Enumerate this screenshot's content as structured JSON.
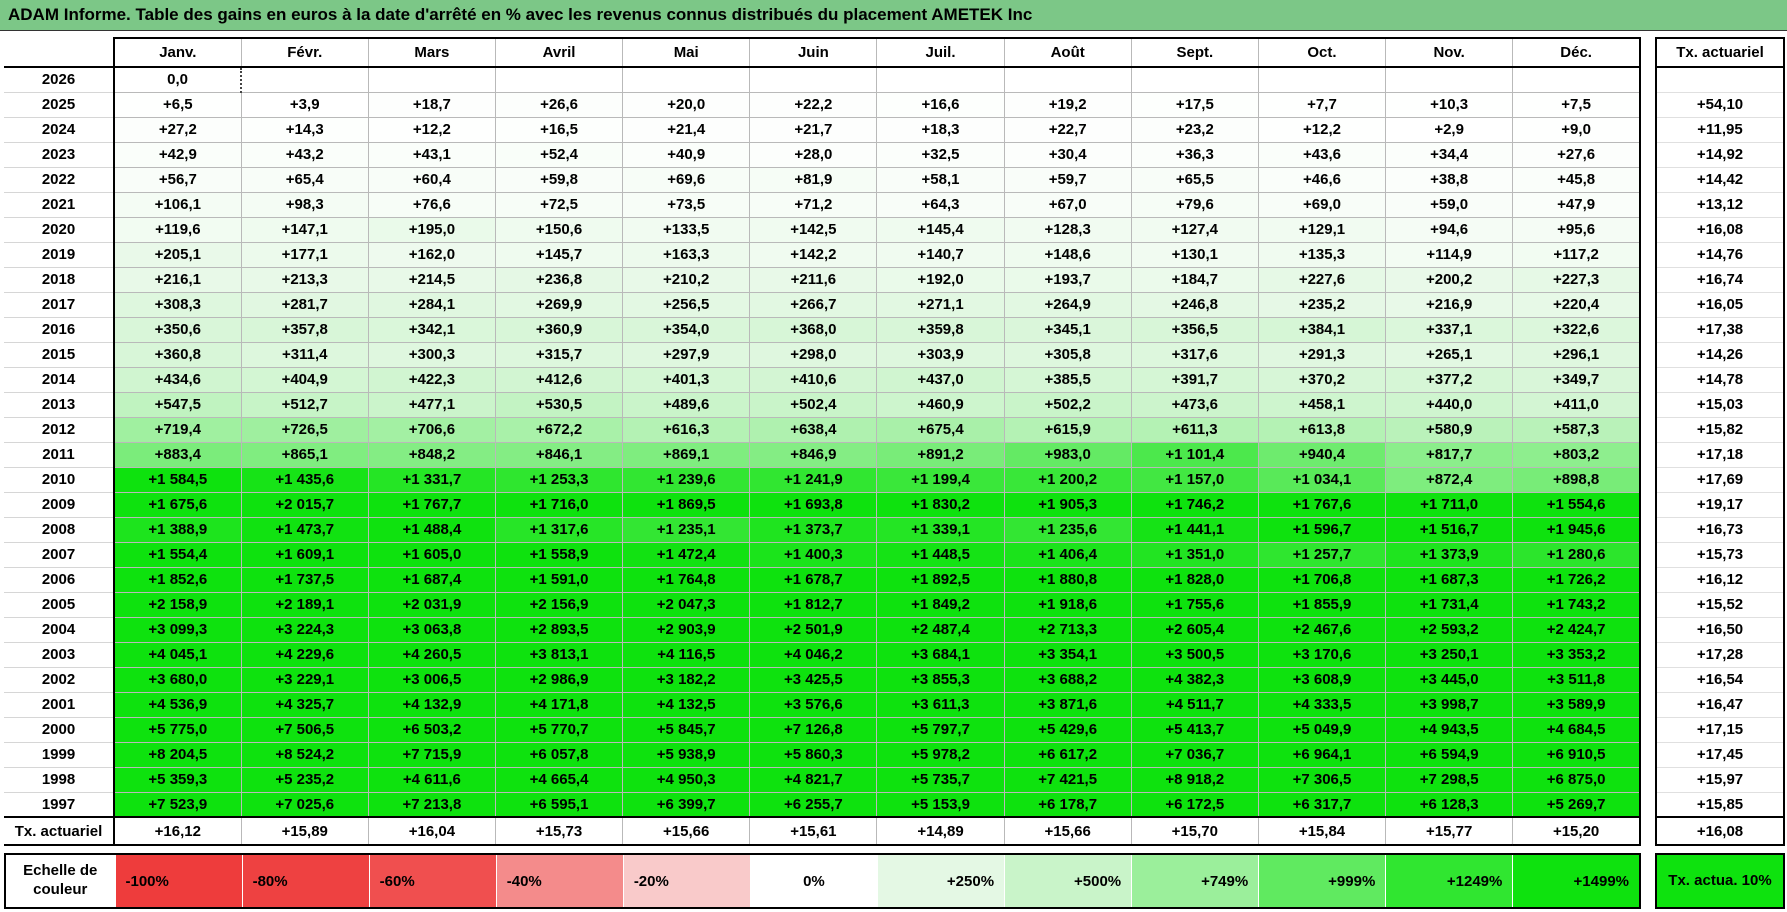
{
  "title": "ADAM Informe. Table des gains en euros à la date d'arrêté en % avec les revenus connus distribués du placement AMETEK Inc",
  "colors": {
    "title_bg": "#7cc787",
    "border_black": "#000000",
    "grid_gray": "#b9b9b9"
  },
  "color_scale": {
    "stops": [
      [
        0,
        "#ffffff"
      ],
      [
        250,
        "#e4f8e4"
      ],
      [
        500,
        "#c9f4c9"
      ],
      [
        749,
        "#9bef9b"
      ],
      [
        999,
        "#60ea60"
      ],
      [
        1249,
        "#30e630"
      ],
      [
        1499,
        "#0ee20e"
      ]
    ]
  },
  "table": {
    "month_headers": [
      "Janv.",
      "Févr.",
      "Mars",
      "Avril",
      "Mai",
      "Juin",
      "Juil.",
      "Août",
      "Sept.",
      "Oct.",
      "Nov.",
      "Déc."
    ],
    "tx_header": "Tx. actuariel",
    "rows": [
      {
        "year": "2026",
        "values": [
          "0,0",
          "",
          "",
          "",
          "",
          "",
          "",
          "",
          "",
          "",
          "",
          ""
        ],
        "tx": ""
      },
      {
        "year": "2025",
        "values": [
          "+6,5",
          "+3,9",
          "+18,7",
          "+26,6",
          "+20,0",
          "+22,2",
          "+16,6",
          "+19,2",
          "+17,5",
          "+7,7",
          "+10,3",
          "+7,5"
        ],
        "tx": "+54,10"
      },
      {
        "year": "2024",
        "values": [
          "+27,2",
          "+14,3",
          "+12,2",
          "+16,5",
          "+21,4",
          "+21,7",
          "+18,3",
          "+22,7",
          "+23,2",
          "+12,2",
          "+2,9",
          "+9,0"
        ],
        "tx": "+11,95"
      },
      {
        "year": "2023",
        "values": [
          "+42,9",
          "+43,2",
          "+43,1",
          "+52,4",
          "+40,9",
          "+28,0",
          "+32,5",
          "+30,4",
          "+36,3",
          "+43,6",
          "+34,4",
          "+27,6"
        ],
        "tx": "+14,92"
      },
      {
        "year": "2022",
        "values": [
          "+56,7",
          "+65,4",
          "+60,4",
          "+59,8",
          "+69,6",
          "+81,9",
          "+58,1",
          "+59,7",
          "+65,5",
          "+46,6",
          "+38,8",
          "+45,8"
        ],
        "tx": "+14,42"
      },
      {
        "year": "2021",
        "values": [
          "+106,1",
          "+98,3",
          "+76,6",
          "+72,5",
          "+73,5",
          "+71,2",
          "+64,3",
          "+67,0",
          "+79,6",
          "+69,0",
          "+59,0",
          "+47,9"
        ],
        "tx": "+13,12"
      },
      {
        "year": "2020",
        "values": [
          "+119,6",
          "+147,1",
          "+195,0",
          "+150,6",
          "+133,5",
          "+142,5",
          "+145,4",
          "+128,3",
          "+127,4",
          "+129,1",
          "+94,6",
          "+95,6"
        ],
        "tx": "+16,08"
      },
      {
        "year": "2019",
        "values": [
          "+205,1",
          "+177,1",
          "+162,0",
          "+145,7",
          "+163,3",
          "+142,2",
          "+140,7",
          "+148,6",
          "+130,1",
          "+135,3",
          "+114,9",
          "+117,2"
        ],
        "tx": "+14,76"
      },
      {
        "year": "2018",
        "values": [
          "+216,1",
          "+213,3",
          "+214,5",
          "+236,8",
          "+210,2",
          "+211,6",
          "+192,0",
          "+193,7",
          "+184,7",
          "+227,6",
          "+200,2",
          "+227,3"
        ],
        "tx": "+16,74"
      },
      {
        "year": "2017",
        "values": [
          "+308,3",
          "+281,7",
          "+284,1",
          "+269,9",
          "+256,5",
          "+266,7",
          "+271,1",
          "+264,9",
          "+246,8",
          "+235,2",
          "+216,9",
          "+220,4"
        ],
        "tx": "+16,05"
      },
      {
        "year": "2016",
        "values": [
          "+350,6",
          "+357,8",
          "+342,1",
          "+360,9",
          "+354,0",
          "+368,0",
          "+359,8",
          "+345,1",
          "+356,5",
          "+384,1",
          "+337,1",
          "+322,6"
        ],
        "tx": "+17,38"
      },
      {
        "year": "2015",
        "values": [
          "+360,8",
          "+311,4",
          "+300,3",
          "+315,7",
          "+297,9",
          "+298,0",
          "+303,9",
          "+305,8",
          "+317,6",
          "+291,3",
          "+265,1",
          "+296,1"
        ],
        "tx": "+14,26"
      },
      {
        "year": "2014",
        "values": [
          "+434,6",
          "+404,9",
          "+422,3",
          "+412,6",
          "+401,3",
          "+410,6",
          "+437,0",
          "+385,5",
          "+391,7",
          "+370,2",
          "+377,2",
          "+349,7"
        ],
        "tx": "+14,78"
      },
      {
        "year": "2013",
        "values": [
          "+547,5",
          "+512,7",
          "+477,1",
          "+530,5",
          "+489,6",
          "+502,4",
          "+460,9",
          "+502,2",
          "+473,6",
          "+458,1",
          "+440,0",
          "+411,0"
        ],
        "tx": "+15,03"
      },
      {
        "year": "2012",
        "values": [
          "+719,4",
          "+726,5",
          "+706,6",
          "+672,2",
          "+616,3",
          "+638,4",
          "+675,4",
          "+615,9",
          "+611,3",
          "+613,8",
          "+580,9",
          "+587,3"
        ],
        "tx": "+15,82"
      },
      {
        "year": "2011",
        "values": [
          "+883,4",
          "+865,1",
          "+848,2",
          "+846,1",
          "+869,1",
          "+846,9",
          "+891,2",
          "+983,0",
          "+1 101,4",
          "+940,4",
          "+817,7",
          "+803,2"
        ],
        "tx": "+17,18"
      },
      {
        "year": "2010",
        "values": [
          "+1 584,5",
          "+1 435,6",
          "+1 331,7",
          "+1 253,3",
          "+1 239,6",
          "+1 241,9",
          "+1 199,4",
          "+1 200,2",
          "+1 157,0",
          "+1 034,1",
          "+872,4",
          "+898,8"
        ],
        "tx": "+17,69"
      },
      {
        "year": "2009",
        "values": [
          "+1 675,6",
          "+2 015,7",
          "+1 767,7",
          "+1 716,0",
          "+1 869,5",
          "+1 693,8",
          "+1 830,2",
          "+1 905,3",
          "+1 746,2",
          "+1 767,6",
          "+1 711,0",
          "+1 554,6"
        ],
        "tx": "+19,17"
      },
      {
        "year": "2008",
        "values": [
          "+1 388,9",
          "+1 473,7",
          "+1 488,4",
          "+1 317,6",
          "+1 235,1",
          "+1 373,7",
          "+1 339,1",
          "+1 235,6",
          "+1 441,1",
          "+1 596,7",
          "+1 516,7",
          "+1 945,6"
        ],
        "tx": "+16,73"
      },
      {
        "year": "2007",
        "values": [
          "+1 554,4",
          "+1 609,1",
          "+1 605,0",
          "+1 558,9",
          "+1 472,4",
          "+1 400,3",
          "+1 448,5",
          "+1 406,4",
          "+1 351,0",
          "+1 257,7",
          "+1 373,9",
          "+1 280,6"
        ],
        "tx": "+15,73"
      },
      {
        "year": "2006",
        "values": [
          "+1 852,6",
          "+1 737,5",
          "+1 687,4",
          "+1 591,0",
          "+1 764,8",
          "+1 678,7",
          "+1 892,5",
          "+1 880,8",
          "+1 828,0",
          "+1 706,8",
          "+1 687,3",
          "+1 726,2"
        ],
        "tx": "+16,12"
      },
      {
        "year": "2005",
        "values": [
          "+2 158,9",
          "+2 189,1",
          "+2 031,9",
          "+2 156,9",
          "+2 047,3",
          "+1 812,7",
          "+1 849,2",
          "+1 918,6",
          "+1 755,6",
          "+1 855,9",
          "+1 731,4",
          "+1 743,2"
        ],
        "tx": "+15,52"
      },
      {
        "year": "2004",
        "values": [
          "+3 099,3",
          "+3 224,3",
          "+3 063,8",
          "+2 893,5",
          "+2 903,9",
          "+2 501,9",
          "+2 487,4",
          "+2 713,3",
          "+2 605,4",
          "+2 467,6",
          "+2 593,2",
          "+2 424,7"
        ],
        "tx": "+16,50"
      },
      {
        "year": "2003",
        "values": [
          "+4 045,1",
          "+4 229,6",
          "+4 260,5",
          "+3 813,1",
          "+4 116,5",
          "+4 046,2",
          "+3 684,1",
          "+3 354,1",
          "+3 500,5",
          "+3 170,6",
          "+3 250,1",
          "+3 353,2"
        ],
        "tx": "+17,28"
      },
      {
        "year": "2002",
        "values": [
          "+3 680,0",
          "+3 229,1",
          "+3 006,5",
          "+2 986,9",
          "+3 182,2",
          "+3 425,5",
          "+3 855,3",
          "+3 688,2",
          "+4 382,3",
          "+3 608,9",
          "+3 445,0",
          "+3 511,8"
        ],
        "tx": "+16,54"
      },
      {
        "year": "2001",
        "values": [
          "+4 536,9",
          "+4 325,7",
          "+4 132,9",
          "+4 171,8",
          "+4 132,5",
          "+3 576,6",
          "+3 611,3",
          "+3 871,6",
          "+4 511,7",
          "+4 333,5",
          "+3 998,7",
          "+3 589,9"
        ],
        "tx": "+16,47"
      },
      {
        "year": "2000",
        "values": [
          "+5 775,0",
          "+7 506,5",
          "+6 503,2",
          "+5 770,7",
          "+5 845,7",
          "+7 126,8",
          "+5 797,7",
          "+5 429,6",
          "+5 413,7",
          "+5 049,9",
          "+4 943,5",
          "+4 684,5"
        ],
        "tx": "+17,15"
      },
      {
        "year": "1999",
        "values": [
          "+8 204,5",
          "+8 524,2",
          "+7 715,9",
          "+6 057,8",
          "+5 938,9",
          "+5 860,3",
          "+5 978,2",
          "+6 617,2",
          "+7 036,7",
          "+6 964,1",
          "+6 594,9",
          "+6 910,5"
        ],
        "tx": "+17,45"
      },
      {
        "year": "1998",
        "values": [
          "+5 359,3",
          "+5 235,2",
          "+4 611,6",
          "+4 665,4",
          "+4 950,3",
          "+4 821,7",
          "+5 735,7",
          "+7 421,5",
          "+8 918,2",
          "+7 306,5",
          "+7 298,5",
          "+6 875,0"
        ],
        "tx": "+15,97"
      },
      {
        "year": "1997",
        "values": [
          "+7 523,9",
          "+7 025,6",
          "+7 213,8",
          "+6 595,1",
          "+6 399,7",
          "+6 255,7",
          "+5 153,9",
          "+6 178,7",
          "+6 172,5",
          "+6 317,7",
          "+6 128,3",
          "+5 269,7"
        ],
        "tx": "+15,85"
      }
    ],
    "footer": {
      "label": "Tx. actuariel",
      "values": [
        "+16,12",
        "+15,89",
        "+16,04",
        "+15,73",
        "+15,66",
        "+15,61",
        "+14,89",
        "+15,66",
        "+15,70",
        "+15,84",
        "+15,77",
        "+15,20"
      ],
      "tx": "+16,08"
    }
  },
  "legend": {
    "label": "Echelle de couleur",
    "cells": [
      {
        "label": "-100%",
        "color": "#ee3c3c",
        "align": "left"
      },
      {
        "label": "-80%",
        "color": "#ee4141",
        "align": "left"
      },
      {
        "label": "-60%",
        "color": "#f04f4f",
        "align": "left"
      },
      {
        "label": "-40%",
        "color": "#f48b8b",
        "align": "left"
      },
      {
        "label": "-20%",
        "color": "#f9caca",
        "align": "left"
      },
      {
        "label": "0%",
        "color": "#ffffff",
        "align": "center"
      },
      {
        "label": "+250%",
        "color": "#e4f8e4",
        "align": "right"
      },
      {
        "label": "+500%",
        "color": "#c9f4c9",
        "align": "right"
      },
      {
        "label": "+749%",
        "color": "#9bef9b",
        "align": "right"
      },
      {
        "label": "+999%",
        "color": "#60ea60",
        "align": "right"
      },
      {
        "label": "+1249%",
        "color": "#30e630",
        "align": "right"
      },
      {
        "label": "+1499%",
        "color": "#0ee20e",
        "align": "right"
      }
    ],
    "tx_box": {
      "label": "Tx. actua. 10%",
      "color": "#0ee20e"
    }
  }
}
